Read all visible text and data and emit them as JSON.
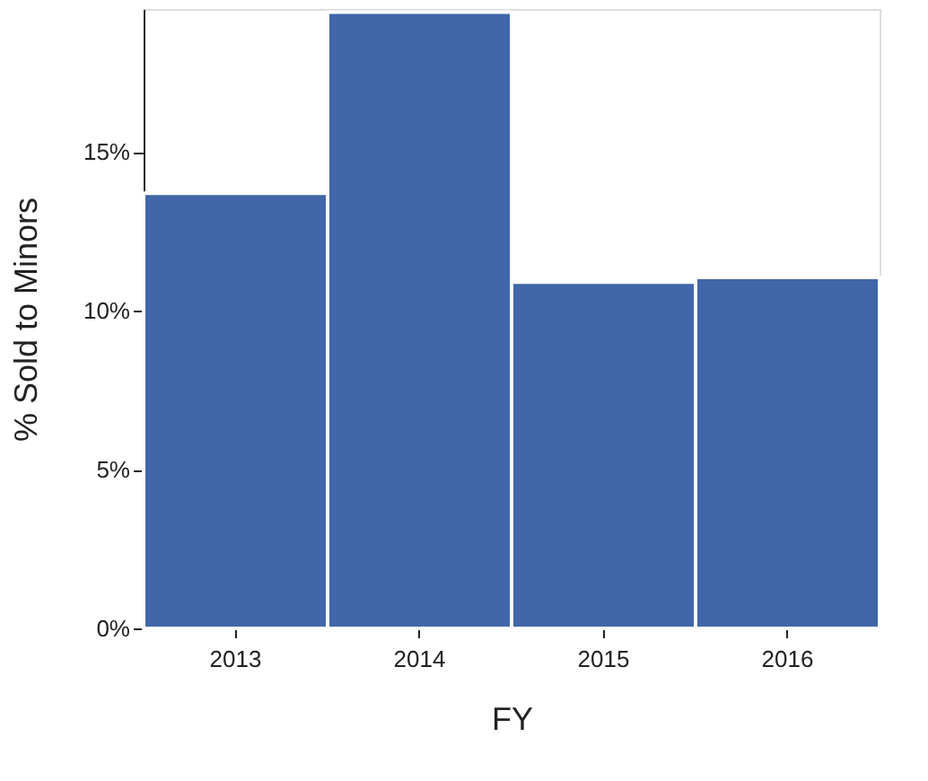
{
  "chart_data": {
    "type": "bar",
    "xlabel": "FY",
    "ylabel": "% Sold to Minors",
    "categories": [
      "2013",
      "2014",
      "2015",
      "2016"
    ],
    "values": [
      13.7,
      19.4,
      10.9,
      11.05
    ],
    "color": "#3f67a9",
    "ylim": [
      0,
      19.5
    ],
    "yticks": [
      {
        "value": 0,
        "label": "0%"
      },
      {
        "value": 5,
        "label": "5%"
      },
      {
        "value": 10,
        "label": "10%"
      },
      {
        "value": 15,
        "label": "15%"
      }
    ],
    "grid": false
  }
}
